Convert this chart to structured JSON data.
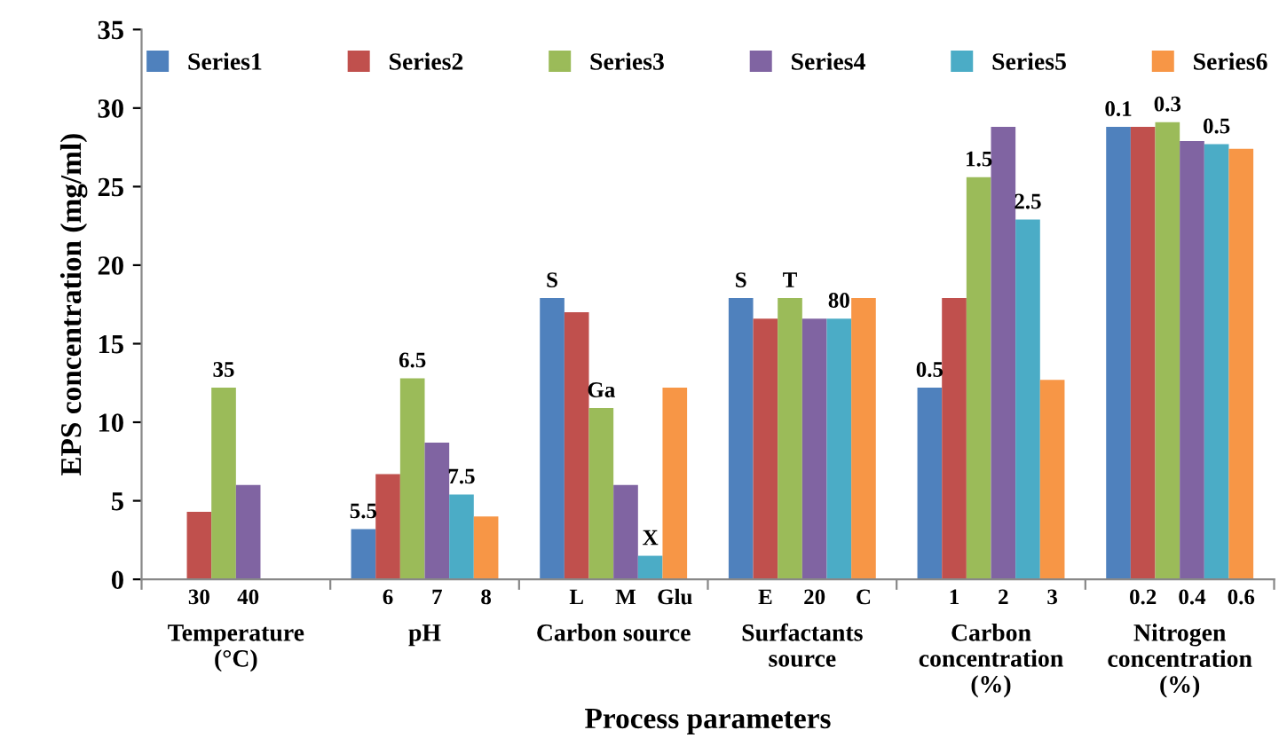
{
  "chart_data": {
    "type": "bar",
    "xlabel": "Process parameters",
    "ylabel": "EPS concentration (mg/ml)",
    "categories": [
      "Temperature\n(°C)",
      "pH",
      "Carbon source",
      "Surfactants\nsource",
      "Carbon\nconcentration\n(%)",
      "Nitrogen\nconcentration\n(%)"
    ],
    "series": [
      {
        "name": "Series1",
        "color": "#4f81bd",
        "values": [
          null,
          3.2,
          17.9,
          17.9,
          12.2,
          28.8
        ]
      },
      {
        "name": "Series2",
        "color": "#c0504d",
        "values": [
          4.3,
          6.7,
          17.0,
          16.6,
          17.9,
          28.8
        ]
      },
      {
        "name": "Series3",
        "color": "#9bbb59",
        "values": [
          12.2,
          12.8,
          10.9,
          17.9,
          25.6,
          29.1
        ]
      },
      {
        "name": "Series4",
        "color": "#8064a2",
        "values": [
          6.0,
          8.7,
          6.0,
          16.6,
          28.8,
          27.9
        ]
      },
      {
        "name": "Series5",
        "color": "#4bacc6",
        "values": [
          null,
          5.4,
          1.5,
          16.6,
          22.9,
          27.7
        ]
      },
      {
        "name": "Series6",
        "color": "#f79646",
        "values": [
          null,
          4.0,
          12.2,
          17.9,
          12.7,
          27.4
        ]
      }
    ],
    "annotations": [
      "30",
      "35",
      "40",
      "5.5",
      "6",
      "6.5",
      "7",
      "7.5",
      "8",
      "S",
      "L",
      "Ga",
      "M",
      "X",
      "Glu",
      "S",
      "E",
      "T",
      "20",
      "80",
      "C",
      "0.5",
      "1",
      "1.5",
      "2",
      "2.5",
      "3",
      "0.1",
      "0.2",
      "0.3",
      "0.4",
      "0.5",
      "0.6"
    ],
    "ylim": [
      0,
      35
    ],
    "yticks": [
      0,
      5,
      10,
      15,
      20,
      25,
      30,
      35
    ],
    "grid": false,
    "legend": "top"
  }
}
